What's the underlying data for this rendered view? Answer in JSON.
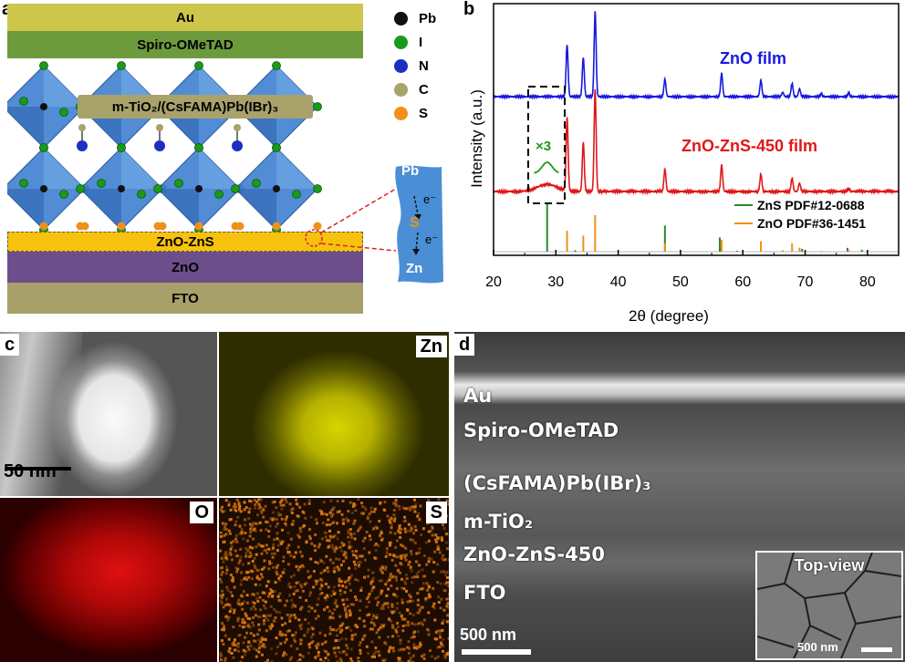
{
  "panels": {
    "a": "a",
    "b": "b",
    "c": "c",
    "d": "d"
  },
  "panel_a": {
    "layers": {
      "au": "Au",
      "spiro": "Spiro-OMeTAD",
      "perovskite": "m-TiO₂/(CsFAMA)Pb(IBr)₃",
      "zno_zns": "ZnO-ZnS",
      "zno": "ZnO",
      "fto": "FTO"
    },
    "legend": [
      {
        "label": "Pb",
        "color": "#111111"
      },
      {
        "label": "I",
        "color": "#1a9a1a"
      },
      {
        "label": "N",
        "color": "#1c2fc0"
      },
      {
        "label": "C",
        "color": "#a9a26a"
      },
      {
        "label": "S",
        "color": "#f0901a"
      }
    ],
    "inset": {
      "top": "Pb",
      "middle": "S",
      "bottom": "Zn",
      "electron": "e⁻"
    },
    "colors": {
      "au": "#cdc64a",
      "spiro": "#6e9a3e",
      "zno_zns": "#f7c20d",
      "zno": "#6c4f8a",
      "fto": "#a8a06a",
      "octahedron": "#3f7fcf"
    }
  },
  "chart_data": {
    "type": "line",
    "xlabel": "2θ (degree)",
    "ylabel": "Intensity (a.u.)",
    "xlim": [
      20,
      85
    ],
    "xticks": [
      20,
      30,
      40,
      50,
      60,
      70,
      80
    ],
    "annotation": "×3",
    "series": [
      {
        "name": "ZnO film",
        "color": "#1818e0",
        "peaks": [
          {
            "x": 31.8,
            "h": 0.6
          },
          {
            "x": 34.4,
            "h": 0.45
          },
          {
            "x": 36.3,
            "h": 0.98
          },
          {
            "x": 47.5,
            "h": 0.2
          },
          {
            "x": 56.6,
            "h": 0.27
          },
          {
            "x": 62.9,
            "h": 0.19
          },
          {
            "x": 66.4,
            "h": 0.05
          },
          {
            "x": 67.9,
            "h": 0.15
          },
          {
            "x": 69.1,
            "h": 0.09
          },
          {
            "x": 72.6,
            "h": 0.03
          },
          {
            "x": 77.0,
            "h": 0.04
          }
        ]
      },
      {
        "name": "ZnO-ZnS-450 film",
        "color": "#e01818",
        "peaks": [
          {
            "x": 28.6,
            "h": 0.07
          },
          {
            "x": 31.8,
            "h": 0.72
          },
          {
            "x": 34.4,
            "h": 0.48
          },
          {
            "x": 36.3,
            "h": 1.0
          },
          {
            "x": 47.5,
            "h": 0.22
          },
          {
            "x": 56.6,
            "h": 0.26
          },
          {
            "x": 62.9,
            "h": 0.17
          },
          {
            "x": 67.9,
            "h": 0.13
          },
          {
            "x": 69.1,
            "h": 0.08
          },
          {
            "x": 77.0,
            "h": 0.03
          }
        ]
      }
    ],
    "references": [
      {
        "name": "ZnS PDF#12-0688",
        "color": "#2a8a2a",
        "sticks": [
          {
            "x": 28.6,
            "h": 1.0
          },
          {
            "x": 33.1,
            "h": 0.03
          },
          {
            "x": 47.5,
            "h": 0.55
          },
          {
            "x": 56.3,
            "h": 0.3
          },
          {
            "x": 59.1,
            "h": 0.02
          },
          {
            "x": 69.5,
            "h": 0.06
          },
          {
            "x": 76.8,
            "h": 0.08
          },
          {
            "x": 79.1,
            "h": 0.04
          }
        ]
      },
      {
        "name": "ZnO PDF#36-1451",
        "color": "#f0901a",
        "sticks": [
          {
            "x": 31.8,
            "h": 0.57
          },
          {
            "x": 34.4,
            "h": 0.44
          },
          {
            "x": 36.3,
            "h": 1.0
          },
          {
            "x": 47.5,
            "h": 0.23
          },
          {
            "x": 56.6,
            "h": 0.32
          },
          {
            "x": 62.9,
            "h": 0.29
          },
          {
            "x": 66.4,
            "h": 0.04
          },
          {
            "x": 67.9,
            "h": 0.23
          },
          {
            "x": 69.1,
            "h": 0.11
          },
          {
            "x": 72.6,
            "h": 0.02
          },
          {
            "x": 77.0,
            "h": 0.04
          }
        ]
      }
    ]
  },
  "panel_c": {
    "tiles": [
      "Zn",
      "O",
      "S"
    ],
    "scalebar": "50 nm",
    "colors": {
      "zn": "#d8d400",
      "o": "#e01010",
      "s": "#e07a10"
    }
  },
  "panel_d": {
    "layers": [
      "Au",
      "Spiro-OMeTAD",
      "(CsFAMA)Pb(IBr)₃",
      "m-TiO₂",
      "ZnO-ZnS-450",
      "FTO"
    ],
    "scalebar": "500 nm",
    "inset_title": "Top-view",
    "inset_scalebar": "500 nm"
  }
}
